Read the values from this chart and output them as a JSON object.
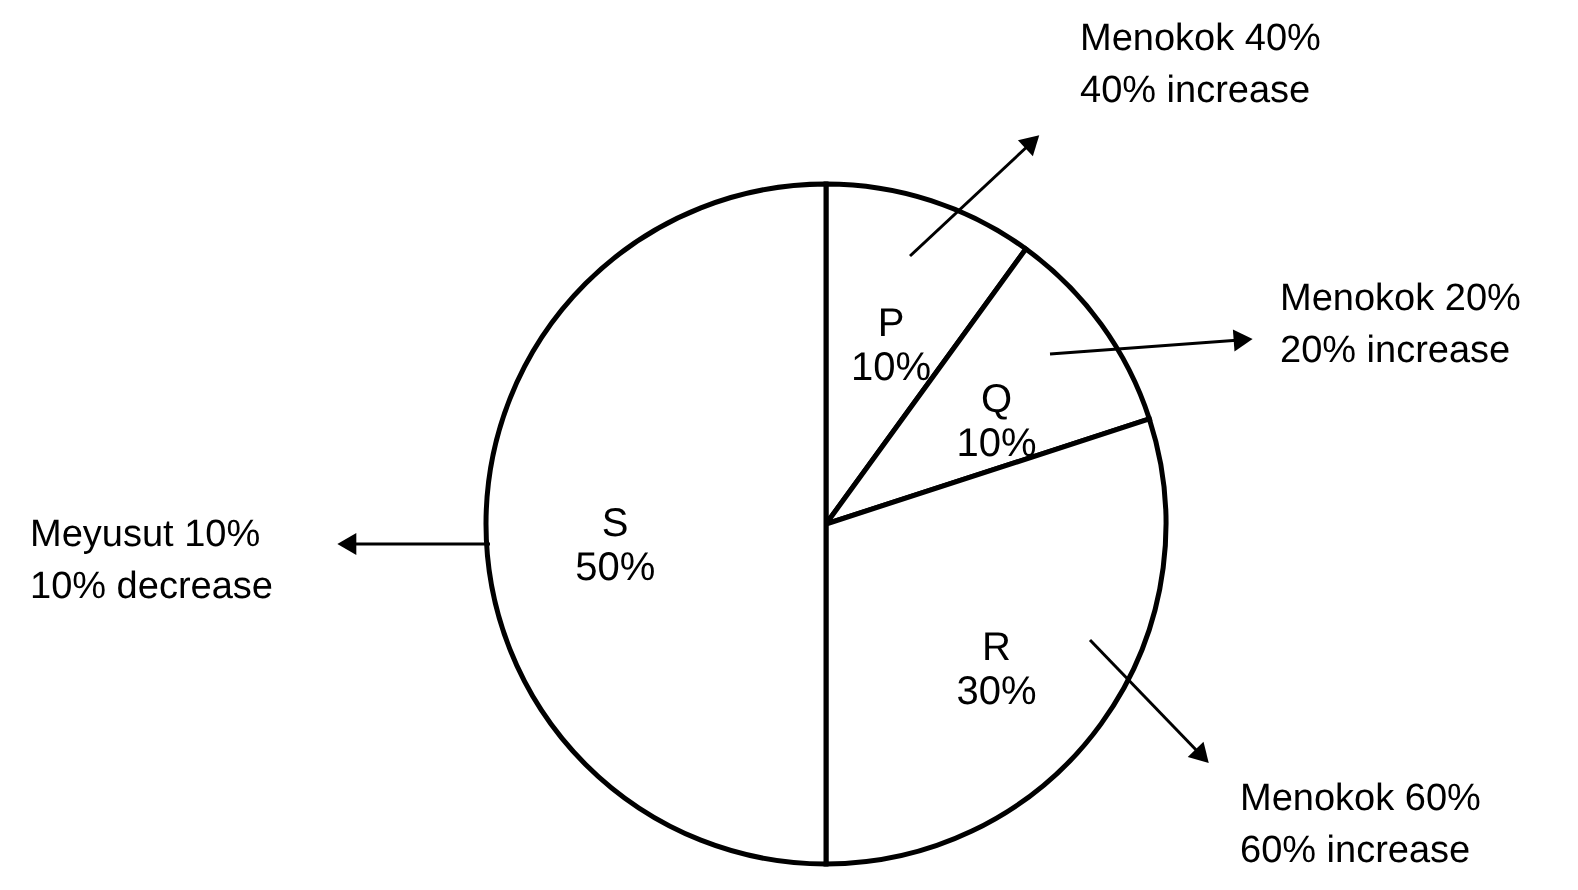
{
  "chart_data": {
    "type": "pie",
    "categories": [
      "P",
      "Q",
      "R",
      "S"
    ],
    "values": [
      10,
      10,
      30,
      50
    ],
    "value_labels": [
      "10%",
      "10%",
      "30%",
      "50%"
    ],
    "colors": [
      "#ffffff",
      "#ffffff",
      "#ffffff",
      "#ffffff"
    ],
    "annotations": [
      "Menokok 40%\n40% increase",
      "Menokok 20%\n20% increase",
      "Menokok 60%\n60% increase",
      "Meyusut 10%\n10% decrease"
    ]
  }
}
